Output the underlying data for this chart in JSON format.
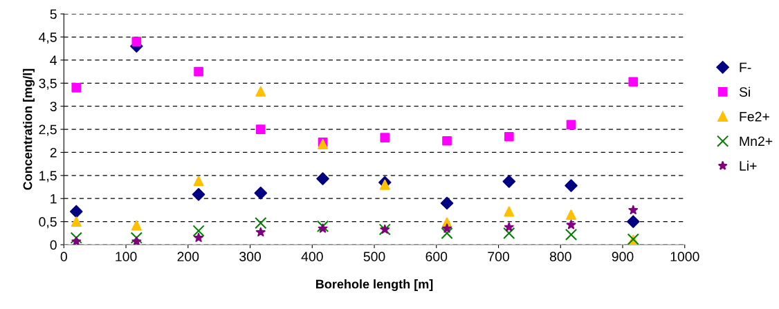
{
  "chart_data": {
    "type": "scatter",
    "xlabel": "Borehole length [m]",
    "ylabel": "Concentration [mg/l]",
    "x": [
      20,
      117,
      217,
      317,
      417,
      517,
      617,
      717,
      817,
      917
    ],
    "series": [
      {
        "name": "F-",
        "color": "#000080",
        "marker": "diamond",
        "values": [
          0.72,
          4.3,
          1.09,
          1.12,
          1.43,
          1.35,
          0.9,
          1.37,
          1.28,
          0.5
        ]
      },
      {
        "name": "Si",
        "color": "#ff00ff",
        "marker": "square",
        "values": [
          3.4,
          4.4,
          3.75,
          2.5,
          2.22,
          2.32,
          2.25,
          2.34,
          2.6,
          3.53
        ]
      },
      {
        "name": "Fe2+",
        "color": "#ffc000",
        "marker": "triangle",
        "values": [
          0.5,
          0.42,
          1.38,
          3.32,
          2.18,
          1.3,
          0.48,
          0.72,
          0.65,
          0.1
        ]
      },
      {
        "name": "Mn2+",
        "color": "#008000",
        "marker": "cross",
        "values": [
          0.15,
          0.15,
          0.3,
          0.47,
          0.4,
          0.33,
          0.25,
          0.25,
          0.22,
          0.12
        ]
      },
      {
        "name": "Li+",
        "color": "#800080",
        "marker": "star",
        "values": [
          0.07,
          0.07,
          0.15,
          0.27,
          0.35,
          0.33,
          0.35,
          0.38,
          0.43,
          0.75
        ]
      }
    ],
    "xlim": [
      0,
      1000
    ],
    "xticks": [
      0,
      100,
      200,
      300,
      400,
      500,
      600,
      700,
      800,
      900,
      1000
    ],
    "ylim": [
      0,
      5
    ],
    "yticks": [
      0,
      {
        "value": 0.5,
        "label": "0,5"
      },
      1,
      {
        "value": 1.5,
        "label": "1,5"
      },
      2,
      {
        "value": 2.5,
        "label": "2,5"
      },
      3,
      {
        "value": 3.5,
        "label": "3,5"
      },
      4,
      {
        "value": 4.5,
        "label": "4,5"
      },
      5
    ],
    "grid": "y",
    "legend": "right"
  }
}
